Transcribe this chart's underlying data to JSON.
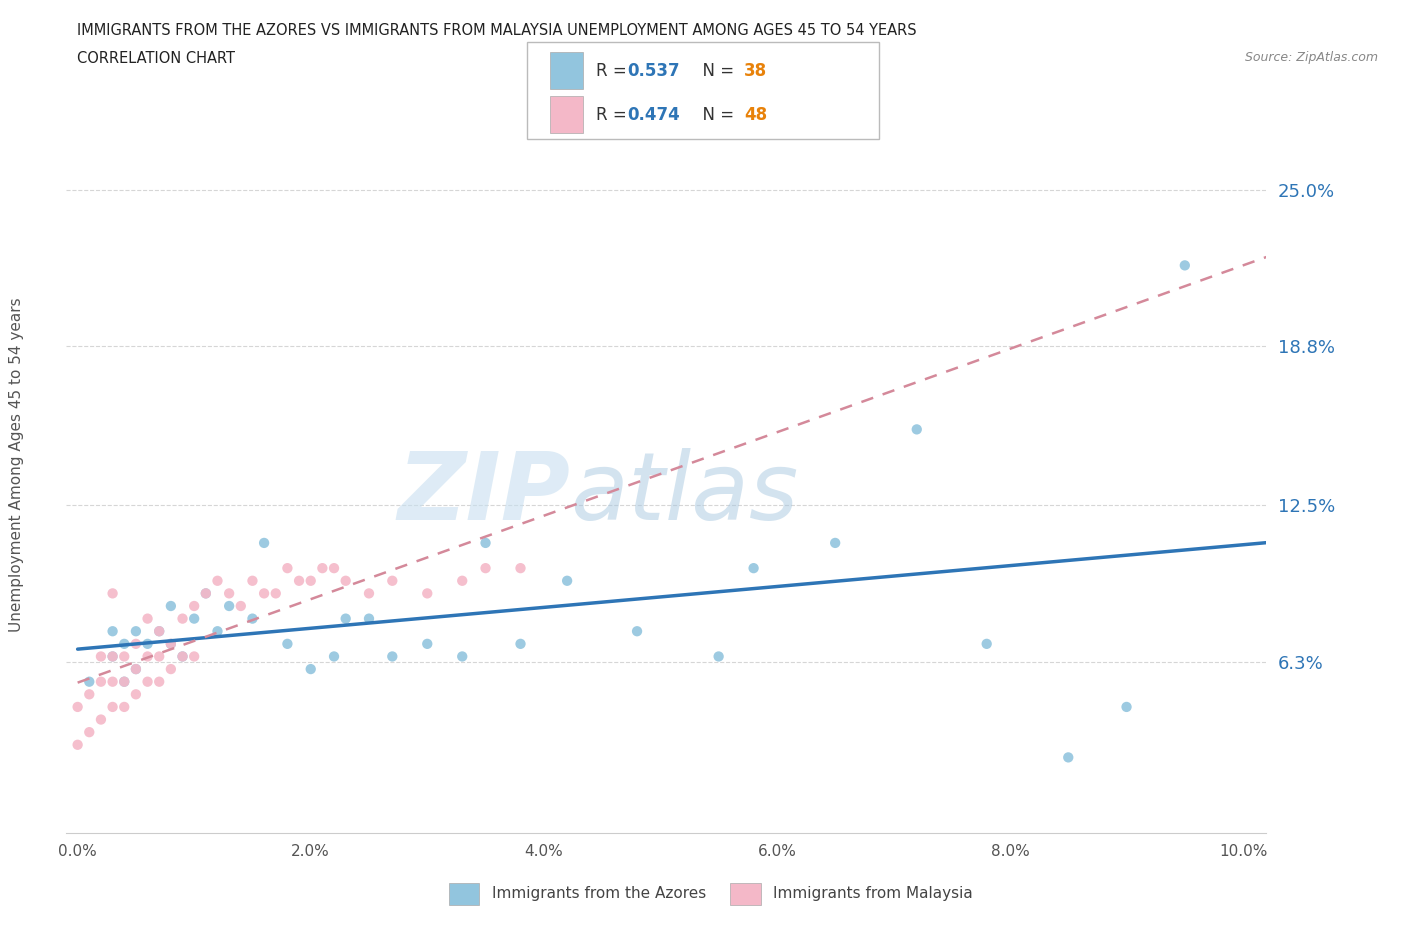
{
  "title_line1": "IMMIGRANTS FROM THE AZORES VS IMMIGRANTS FROM MALAYSIA UNEMPLOYMENT AMONG AGES 45 TO 54 YEARS",
  "title_line2": "CORRELATION CHART",
  "source_text": "Source: ZipAtlas.com",
  "ylabel": "Unemployment Among Ages 45 to 54 years",
  "xlim": [
    -0.001,
    0.102
  ],
  "ylim": [
    -0.005,
    0.275
  ],
  "yticks": [
    0.063,
    0.125,
    0.188,
    0.25
  ],
  "ytick_labels": [
    "6.3%",
    "12.5%",
    "18.8%",
    "25.0%"
  ],
  "xticks": [
    0.0,
    0.02,
    0.04,
    0.06,
    0.08,
    0.1
  ],
  "xtick_labels": [
    "0.0%",
    "2.0%",
    "4.0%",
    "6.0%",
    "8.0%",
    "10.0%"
  ],
  "watermark_zip": "ZIP",
  "watermark_atlas": "atlas",
  "azores_color": "#92C5DE",
  "malaysia_color": "#F4B8C8",
  "azores_line_color": "#2E75B6",
  "malaysia_line_color": "#D4899A",
  "R_azores": 0.537,
  "N_azores": 38,
  "R_malaysia": 0.474,
  "N_malaysia": 48,
  "legend_R_color": "#2E75B6",
  "legend_N_color": "#E8820A",
  "background_color": "#FFFFFF",
  "grid_color": "#CCCCCC",
  "azores_x": [
    0.001,
    0.003,
    0.003,
    0.004,
    0.004,
    0.005,
    0.005,
    0.006,
    0.007,
    0.008,
    0.008,
    0.009,
    0.01,
    0.011,
    0.012,
    0.013,
    0.015,
    0.016,
    0.018,
    0.02,
    0.022,
    0.023,
    0.025,
    0.027,
    0.03,
    0.033,
    0.035,
    0.038,
    0.042,
    0.048,
    0.055,
    0.058,
    0.065,
    0.072,
    0.078,
    0.085,
    0.09,
    0.095
  ],
  "azores_y": [
    0.055,
    0.065,
    0.075,
    0.055,
    0.07,
    0.06,
    0.075,
    0.07,
    0.075,
    0.07,
    0.085,
    0.065,
    0.08,
    0.09,
    0.075,
    0.085,
    0.08,
    0.11,
    0.07,
    0.06,
    0.065,
    0.08,
    0.08,
    0.065,
    0.07,
    0.065,
    0.11,
    0.07,
    0.095,
    0.075,
    0.065,
    0.1,
    0.11,
    0.155,
    0.07,
    0.025,
    0.045,
    0.22
  ],
  "malaysia_x": [
    0.0,
    0.0,
    0.001,
    0.001,
    0.002,
    0.002,
    0.002,
    0.003,
    0.003,
    0.003,
    0.003,
    0.004,
    0.004,
    0.004,
    0.005,
    0.005,
    0.005,
    0.006,
    0.006,
    0.006,
    0.007,
    0.007,
    0.007,
    0.008,
    0.008,
    0.009,
    0.009,
    0.01,
    0.01,
    0.011,
    0.012,
    0.013,
    0.014,
    0.015,
    0.016,
    0.017,
    0.018,
    0.019,
    0.02,
    0.021,
    0.022,
    0.023,
    0.025,
    0.027,
    0.03,
    0.033,
    0.035,
    0.038
  ],
  "malaysia_y": [
    0.03,
    0.045,
    0.035,
    0.05,
    0.04,
    0.055,
    0.065,
    0.045,
    0.055,
    0.065,
    0.09,
    0.045,
    0.055,
    0.065,
    0.05,
    0.06,
    0.07,
    0.055,
    0.065,
    0.08,
    0.055,
    0.065,
    0.075,
    0.06,
    0.07,
    0.065,
    0.08,
    0.065,
    0.085,
    0.09,
    0.095,
    0.09,
    0.085,
    0.095,
    0.09,
    0.09,
    0.1,
    0.095,
    0.095,
    0.1,
    0.1,
    0.095,
    0.09,
    0.095,
    0.09,
    0.095,
    0.1,
    0.1
  ]
}
